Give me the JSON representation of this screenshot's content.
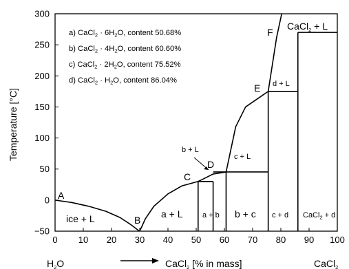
{
  "chart_data": {
    "type": "line",
    "ylabel": "Temperature [°C]",
    "xlabel_prefix": "CaCl",
    "xlabel_suffix": " [% in mass]",
    "xlabel_sub": "2",
    "x_left_label": "H",
    "x_left_sub": "2",
    "x_left_tail": "O",
    "x_right_label": "CaCl",
    "x_right_sub": "2",
    "xlim": [
      0,
      100
    ],
    "ylim": [
      -50,
      300
    ],
    "x_ticks": [
      "0",
      "10",
      "20",
      "30",
      "40",
      "50",
      "60",
      "70",
      "80",
      "90",
      "100"
    ],
    "y_ticks": [
      "−50",
      "0",
      "50",
      "100",
      "150",
      "200",
      "250",
      "300"
    ],
    "x_tick_values": [
      0,
      10,
      20,
      30,
      40,
      50,
      60,
      70,
      80,
      90,
      100
    ],
    "y_tick_values": [
      -50,
      0,
      50,
      100,
      150,
      200,
      250,
      300
    ],
    "grid": false,
    "liquidus_curve": {
      "x": [
        0,
        6,
        12,
        18,
        23,
        27,
        29.9
      ],
      "y": [
        0,
        -4,
        -10,
        -18,
        -28,
        -40,
        -50
      ]
    },
    "liquidus_curve_2": {
      "x": [
        29.9,
        30.5,
        32,
        35,
        40,
        45,
        50.68,
        52.5,
        56,
        60.6
      ],
      "y": [
        -50,
        -45,
        -30,
        -10,
        10,
        23,
        30,
        34,
        42,
        45.3
      ]
    },
    "liquidus_curve_3": {
      "x": [
        56,
        60.6,
        64,
        67.5,
        75.52
      ],
      "y": [
        42,
        45.3,
        118,
        150,
        175
      ]
    },
    "liquidus_curve_4": {
      "x": [
        75.52,
        78.5,
        80.3
      ],
      "y": [
        175,
        262,
        300
      ]
    },
    "tie_lines": [
      {
        "name": "C",
        "x": [
          50.68,
          56
        ],
        "y": [
          30,
          30
        ]
      },
      {
        "name": "D",
        "x": [
          56,
          75.52
        ],
        "y": [
          45.3,
          45.3
        ]
      },
      {
        "name": "E",
        "x": [
          75.52,
          86.04
        ],
        "y": [
          175,
          175
        ]
      },
      {
        "name": "F",
        "x": [
          86.04,
          100
        ],
        "y": [
          270,
          270
        ]
      }
    ],
    "compositions": [
      50.68,
      56,
      60.6,
      75.52,
      86.04
    ],
    "composition_tops": [
      30,
      30,
      45.3,
      175,
      270
    ],
    "notes": [
      {
        "pre": "a) CaCl",
        "sub": "2",
        "mid": " · 6H",
        "sub2": "2",
        "post": "O, content 50.68%"
      },
      {
        "pre": "b) CaCl",
        "sub": "2",
        "mid": " · 4H",
        "sub2": "2",
        "post": "O, content 60.60%"
      },
      {
        "pre": "c) CaCl",
        "sub": "2",
        "mid": " · 2H",
        "sub2": "2",
        "post": "O, content 75.52%"
      },
      {
        "pre": "d) CaCl",
        "sub": "2",
        "mid": " · H",
        "sub2": "2",
        "post": "O, content 86.04%"
      }
    ],
    "points": [
      "A",
      "B",
      "C",
      "D",
      "E",
      "F"
    ],
    "regions": {
      "ice_l": "ice + L",
      "a_l": "a + L",
      "a_b": "a + b",
      "b_c": "b + c",
      "c_l": "c + L",
      "b_l": "b + L",
      "c_d": "c + d",
      "d_l": "d + L",
      "cacl2_l_pre": "CaCl",
      "cacl2_l_sub": "2",
      "cacl2_l_post": " + L",
      "cacl2_d_pre": "CaCl",
      "cacl2_d_sub": "2",
      "cacl2_d_post": " + d"
    }
  }
}
